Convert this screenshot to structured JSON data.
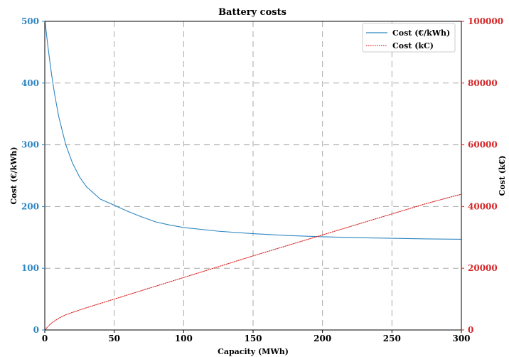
{
  "chart_data": {
    "type": "line",
    "title": "Battery costs",
    "xlabel": "Capacity (MWh)",
    "ylabel_left": "Cost (€/kWh)",
    "ylabel_right": "Cost (k€)",
    "xlim": [
      0,
      300
    ],
    "ylim_left": [
      0,
      500
    ],
    "ylim_right": [
      0,
      100000
    ],
    "xticks": [
      0,
      50,
      100,
      150,
      200,
      250,
      300
    ],
    "yticks_left": [
      0,
      100,
      200,
      300,
      400,
      500
    ],
    "yticks_right": [
      0,
      20000,
      40000,
      60000,
      80000,
      100000
    ],
    "grid": true,
    "legend_position": "top-right",
    "colors": {
      "left_axis": "#2e86c1",
      "right_axis": "#d62728",
      "series_left": "#2e86c1",
      "series_right": "#d62728"
    },
    "series": [
      {
        "name": "Cost (€/kWh)",
        "axis": "left",
        "style": "solid",
        "x": [
          0.2,
          1,
          2,
          3,
          5,
          7,
          10,
          15,
          20,
          25,
          30,
          40,
          50,
          60,
          70,
          80,
          90,
          100,
          125,
          150,
          175,
          200,
          225,
          250,
          275,
          300
        ],
        "y": [
          500,
          484,
          464,
          446,
          412,
          383,
          346,
          301,
          270,
          248,
          232,
          212,
          202,
          192,
          183,
          175,
          170,
          166,
          160,
          156,
          153,
          151,
          149.5,
          148.5,
          147.5,
          147
        ]
      },
      {
        "name": "Cost (kC)",
        "axis": "right",
        "style": "dotted",
        "x": [
          0.2,
          2,
          5,
          10,
          15,
          20,
          30,
          50,
          75,
          100,
          125,
          150,
          175,
          200,
          225,
          250,
          275,
          300
        ],
        "y": [
          0,
          1000,
          2300,
          3800,
          4900,
          5700,
          7200,
          10000,
          13500,
          17000,
          20500,
          24000,
          27400,
          30800,
          34200,
          37600,
          41000,
          44000
        ]
      }
    ]
  }
}
